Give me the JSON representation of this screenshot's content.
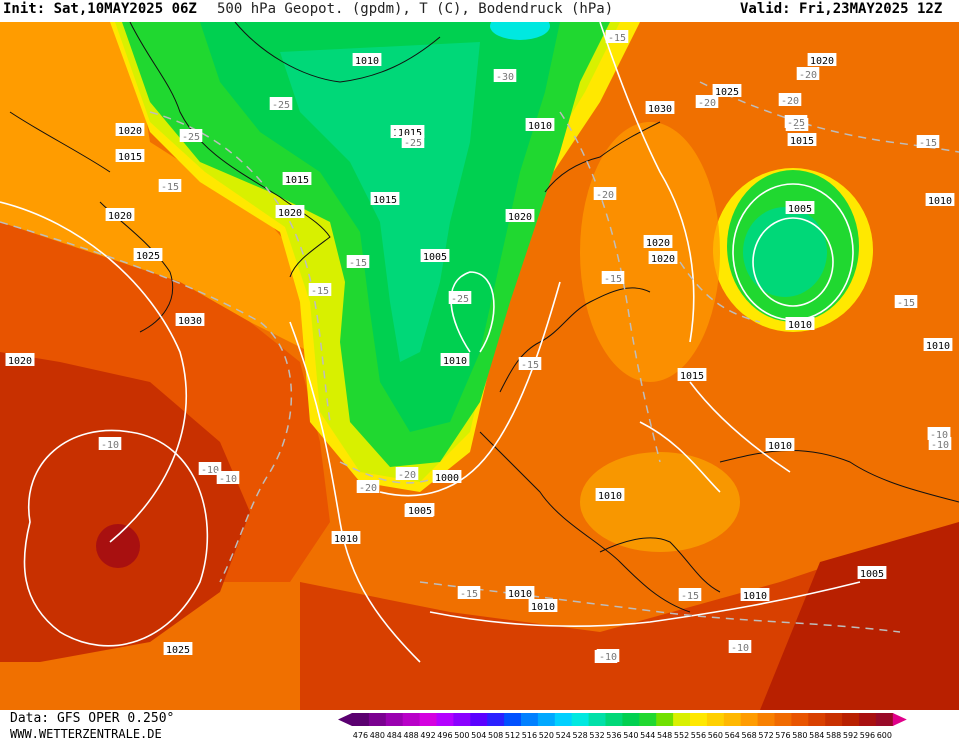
{
  "header": {
    "init": "Init: Sat,10MAY2025 06Z",
    "title": "500 hPa Geopot. (gpdm), T (C), Bodendruck (hPa)",
    "valid": "Valid: Fri,23MAY2025 12Z"
  },
  "footer": {
    "data": "Data: GFS OPER 0.250°",
    "site": "WWW.WETTERZENTRALE.DE"
  },
  "legend": {
    "levels": [
      "476",
      "480",
      "484",
      "488",
      "492",
      "496",
      "500",
      "504",
      "508",
      "512",
      "516",
      "520",
      "524",
      "528",
      "532",
      "536",
      "540",
      "544",
      "548",
      "552",
      "556",
      "560",
      "564",
      "568",
      "572",
      "576",
      "580",
      "584",
      "588",
      "592",
      "596",
      "600"
    ],
    "colors": [
      "#5a0070",
      "#7a0090",
      "#9a00b0",
      "#b800c8",
      "#d400e0",
      "#b400ff",
      "#8a00ff",
      "#5a00ff",
      "#2a20ff",
      "#0050ff",
      "#0080ff",
      "#00a8ff",
      "#00d0ff",
      "#00e8e0",
      "#00e0a8",
      "#00d878",
      "#00d050",
      "#20d830",
      "#70e000",
      "#d8f000",
      "#ffe800",
      "#ffd000",
      "#ffb800",
      "#ff9c00",
      "#f88000",
      "#f06a00",
      "#e85400",
      "#d84000",
      "#c83000",
      "#b82000",
      "#a81010",
      "#980a28"
    ]
  },
  "pressure_labels": [
    "1010",
    "1020",
    "1015",
    "1020",
    "1015",
    "1020",
    "1025",
    "1030",
    "1020",
    "1010",
    "1010",
    "1015",
    "1020",
    "1005",
    "1010",
    "1000",
    "1005",
    "1010",
    "1015",
    "1030",
    "1025",
    "1020",
    "1015",
    "1005",
    "1010",
    "1020",
    "1020",
    "1015",
    "1010",
    "1010",
    "1010",
    "1010",
    "1005",
    "1010",
    "1025",
    "1020",
    "1010",
    "1010",
    "1005",
    "1010"
  ],
  "temp_labels": [
    "-25",
    "-30",
    "-25",
    "-25",
    "-25",
    "-15",
    "-15",
    "-20",
    "-15",
    "-25",
    "-20",
    "-15",
    "-20",
    "-20",
    "-15",
    "-15",
    "-20",
    "-20",
    "-25",
    "-15",
    "-15",
    "-10",
    "-10",
    "-10",
    "-10",
    "-15",
    "-10",
    "-10",
    "-10",
    "-15",
    "-10",
    "-10"
  ]
}
